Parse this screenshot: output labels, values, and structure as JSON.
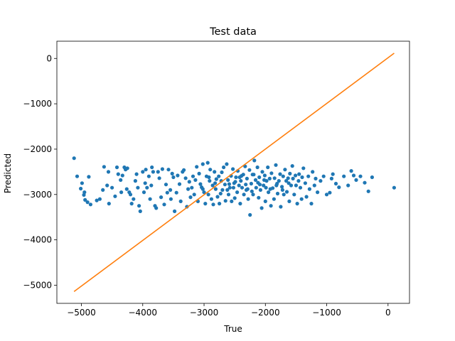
{
  "chart_data": {
    "type": "scatter",
    "title": "Test data",
    "xlabel": "True",
    "ylabel": "Predicted",
    "xlim": [
      -5400,
      350
    ],
    "ylim": [
      -5400,
      380
    ],
    "xticks": [
      -5000,
      -4000,
      -3000,
      -2000,
      -1000,
      0
    ],
    "yticks": [
      -5000,
      -4000,
      -3000,
      -2000,
      -1000,
      0
    ],
    "xtick_labels": [
      "−5000",
      "−4000",
      "−3000",
      "−2000",
      "−1000",
      "0"
    ],
    "ytick_labels": [
      "−5000",
      "−4000",
      "−3000",
      "−2000",
      "−1000",
      "0"
    ],
    "grid": false,
    "colors": {
      "points": "#1f77b4",
      "line": "#ff7f0e"
    },
    "series": [
      {
        "type": "scatter",
        "points": [
          [
            -5120,
            -2200
          ],
          [
            -5070,
            -2600
          ],
          [
            -5010,
            -2870
          ],
          [
            -4990,
            -2750
          ],
          [
            -4960,
            -3010
          ],
          [
            -4950,
            -2950
          ],
          [
            -4940,
            -3120
          ],
          [
            -4900,
            -3170
          ],
          [
            -4880,
            -2610
          ],
          [
            -4850,
            -3220
          ],
          [
            -4750,
            -3130
          ],
          [
            -4700,
            -3100
          ],
          [
            -4650,
            -2900
          ],
          [
            -4630,
            -2390
          ],
          [
            -4580,
            -2800
          ],
          [
            -4560,
            -2500
          ],
          [
            -4550,
            -3200
          ],
          [
            -4500,
            -2850
          ],
          [
            -4450,
            -3040
          ],
          [
            -4420,
            -2400
          ],
          [
            -4400,
            -2550
          ],
          [
            -4360,
            -2680
          ],
          [
            -4350,
            -2950
          ],
          [
            -4330,
            -2580
          ],
          [
            -4300,
            -2400
          ],
          [
            -4280,
            -2450
          ],
          [
            -4260,
            -2880
          ],
          [
            -4250,
            -2420
          ],
          [
            -4220,
            -2950
          ],
          [
            -4200,
            -3000
          ],
          [
            -4180,
            -3200
          ],
          [
            -4150,
            -3100
          ],
          [
            -4120,
            -2700
          ],
          [
            -4100,
            -2550
          ],
          [
            -4080,
            -2850
          ],
          [
            -4060,
            -3250
          ],
          [
            -4040,
            -3370
          ],
          [
            -4000,
            -2500
          ],
          [
            -3980,
            -2950
          ],
          [
            -3960,
            -2750
          ],
          [
            -3950,
            -2450
          ],
          [
            -3930,
            -2850
          ],
          [
            -3900,
            -2600
          ],
          [
            -3880,
            -3100
          ],
          [
            -3860,
            -2800
          ],
          [
            -3850,
            -2400
          ],
          [
            -3830,
            -2500
          ],
          [
            -3800,
            -3250
          ],
          [
            -3780,
            -3300
          ],
          [
            -3750,
            -2500
          ],
          [
            -3730,
            -2640
          ],
          [
            -3700,
            -3060
          ],
          [
            -3680,
            -2440
          ],
          [
            -3650,
            -3220
          ],
          [
            -3620,
            -2780
          ],
          [
            -3600,
            -2960
          ],
          [
            -3580,
            -2450
          ],
          [
            -3550,
            -2900
          ],
          [
            -3540,
            -3100
          ],
          [
            -3520,
            -2540
          ],
          [
            -3500,
            -2620
          ],
          [
            -3480,
            -3370
          ],
          [
            -3450,
            -2960
          ],
          [
            -3430,
            -2580
          ],
          [
            -3400,
            -2770
          ],
          [
            -3380,
            -3150
          ],
          [
            -3350,
            -2500
          ],
          [
            -3330,
            -2460
          ],
          [
            -3300,
            -2640
          ],
          [
            -3280,
            -3270
          ],
          [
            -3260,
            -2880
          ],
          [
            -3240,
            -2720
          ],
          [
            -3220,
            -3060
          ],
          [
            -3200,
            -2850
          ],
          [
            -3180,
            -2600
          ],
          [
            -3160,
            -3000
          ],
          [
            -3140,
            -2680
          ],
          [
            -3120,
            -2390
          ],
          [
            -3100,
            -3150
          ],
          [
            -3080,
            -2540
          ],
          [
            -3060,
            -2770
          ],
          [
            -3040,
            -2840
          ],
          [
            -3020,
            -2330
          ],
          [
            -3000,
            -2950
          ],
          [
            -2980,
            -3200
          ],
          [
            -2960,
            -2600
          ],
          [
            -2940,
            -2300
          ],
          [
            -2930,
            -3000
          ],
          [
            -2910,
            -2700
          ],
          [
            -2900,
            -2450
          ],
          [
            -2880,
            -3100
          ],
          [
            -2860,
            -2800
          ],
          [
            -2850,
            -3220
          ],
          [
            -2830,
            -2500
          ],
          [
            -2810,
            -2880
          ],
          [
            -2800,
            -2660
          ],
          [
            -2780,
            -3050
          ],
          [
            -2760,
            -2600
          ],
          [
            -2750,
            -3200
          ],
          [
            -2730,
            -2980
          ],
          [
            -2710,
            -2510
          ],
          [
            -2700,
            -2900
          ],
          [
            -2680,
            -2400
          ],
          [
            -2660,
            -2780
          ],
          [
            -2650,
            -3140
          ],
          [
            -2630,
            -2330
          ],
          [
            -2610,
            -2680
          ],
          [
            -2600,
            -3000
          ],
          [
            -2580,
            -2850
          ],
          [
            -2560,
            -2590
          ],
          [
            -2550,
            -3150
          ],
          [
            -2530,
            -2440
          ],
          [
            -2510,
            -2750
          ],
          [
            -2500,
            -3080
          ],
          [
            -2480,
            -2620
          ],
          [
            -2460,
            -2950
          ],
          [
            -2450,
            -2480
          ],
          [
            -2430,
            -2800
          ],
          [
            -2410,
            -3200
          ],
          [
            -2400,
            -2700
          ],
          [
            -2380,
            -2850
          ],
          [
            -2360,
            -2560
          ],
          [
            -2350,
            -3000
          ],
          [
            -2330,
            -2380
          ],
          [
            -2310,
            -2900
          ],
          [
            -2300,
            -2650
          ],
          [
            -2280,
            -3100
          ],
          [
            -2260,
            -2460
          ],
          [
            -2250,
            -3450
          ],
          [
            -2230,
            -2760
          ],
          [
            -2210,
            -2560
          ],
          [
            -2200,
            -3000
          ],
          [
            -2180,
            -2250
          ],
          [
            -2160,
            -2680
          ],
          [
            -2150,
            -2850
          ],
          [
            -2130,
            -2400
          ],
          [
            -2110,
            -3070
          ],
          [
            -2100,
            -2620
          ],
          [
            -2080,
            -2900
          ],
          [
            -2060,
            -3300
          ],
          [
            -2050,
            -2500
          ],
          [
            -2030,
            -2800
          ],
          [
            -2010,
            -2580
          ],
          [
            -2000,
            -3150
          ],
          [
            -1980,
            -2700
          ],
          [
            -1960,
            -2400
          ],
          [
            -1950,
            -2950
          ],
          [
            -1930,
            -2650
          ],
          [
            -1910,
            -3250
          ],
          [
            -1900,
            -2530
          ],
          [
            -1880,
            -2860
          ],
          [
            -1860,
            -3100
          ],
          [
            -1850,
            -2640
          ],
          [
            -1830,
            -2350
          ],
          [
            -1810,
            -2760
          ],
          [
            -1800,
            -2980
          ],
          [
            -1780,
            -2700
          ],
          [
            -1760,
            -2550
          ],
          [
            -1750,
            -3270
          ],
          [
            -1730,
            -2830
          ],
          [
            -1710,
            -2600
          ],
          [
            -1700,
            -3000
          ],
          [
            -1680,
            -2450
          ],
          [
            -1660,
            -2700
          ],
          [
            -1650,
            -2940
          ],
          [
            -1630,
            -2640
          ],
          [
            -1610,
            -3150
          ],
          [
            -1600,
            -2540
          ],
          [
            -1580,
            -2800
          ],
          [
            -1560,
            -2370
          ],
          [
            -1550,
            -2650
          ],
          [
            -1530,
            -3000
          ],
          [
            -1510,
            -2580
          ],
          [
            -1500,
            -2800
          ],
          [
            -1480,
            -3200
          ],
          [
            -1460,
            -2700
          ],
          [
            -1450,
            -2550
          ],
          [
            -1430,
            -2850
          ],
          [
            -1410,
            -3100
          ],
          [
            -1400,
            -2620
          ],
          [
            -1380,
            -2420
          ],
          [
            -1350,
            -2750
          ],
          [
            -1330,
            -3050
          ],
          [
            -1300,
            -2600
          ],
          [
            -1280,
            -2880
          ],
          [
            -1250,
            -3200
          ],
          [
            -1230,
            -2500
          ],
          [
            -1200,
            -2800
          ],
          [
            -1180,
            -2650
          ],
          [
            -1150,
            -2950
          ],
          [
            -1100,
            -2700
          ],
          [
            -1050,
            -2600
          ],
          [
            -1000,
            -3000
          ],
          [
            -950,
            -2960
          ],
          [
            -920,
            -2650
          ],
          [
            -900,
            -2550
          ],
          [
            -850,
            -2760
          ],
          [
            -800,
            -2840
          ],
          [
            -720,
            -2600
          ],
          [
            -650,
            -2800
          ],
          [
            -600,
            -2480
          ],
          [
            -560,
            -2580
          ],
          [
            -520,
            -2680
          ],
          [
            -450,
            -2600
          ],
          [
            -380,
            -2740
          ],
          [
            -320,
            -2930
          ],
          [
            -260,
            -2620
          ],
          [
            100,
            -2850
          ],
          [
            -2620,
            -2900
          ],
          [
            -2520,
            -2850
          ],
          [
            -2420,
            -2620
          ],
          [
            -2320,
            -2780
          ],
          [
            -2220,
            -2930
          ],
          [
            -2120,
            -2740
          ],
          [
            -2020,
            -2680
          ],
          [
            -1920,
            -2880
          ],
          [
            -1820,
            -2800
          ],
          [
            -1720,
            -2900
          ],
          [
            -1620,
            -2750
          ],
          [
            -2720,
            -2700
          ],
          [
            -2820,
            -2750
          ],
          [
            -2920,
            -2620
          ],
          [
            -3020,
            -2880
          ],
          [
            -2590,
            -2770
          ],
          [
            -2490,
            -2720
          ],
          [
            -2390,
            -2590
          ],
          [
            -2290,
            -2880
          ],
          [
            -2190,
            -2560
          ],
          [
            -2090,
            -2780
          ],
          [
            -1990,
            -2850
          ]
        ]
      },
      {
        "type": "line",
        "points": [
          [
            -5120,
            -5140
          ],
          [
            100,
            115
          ]
        ]
      }
    ]
  }
}
